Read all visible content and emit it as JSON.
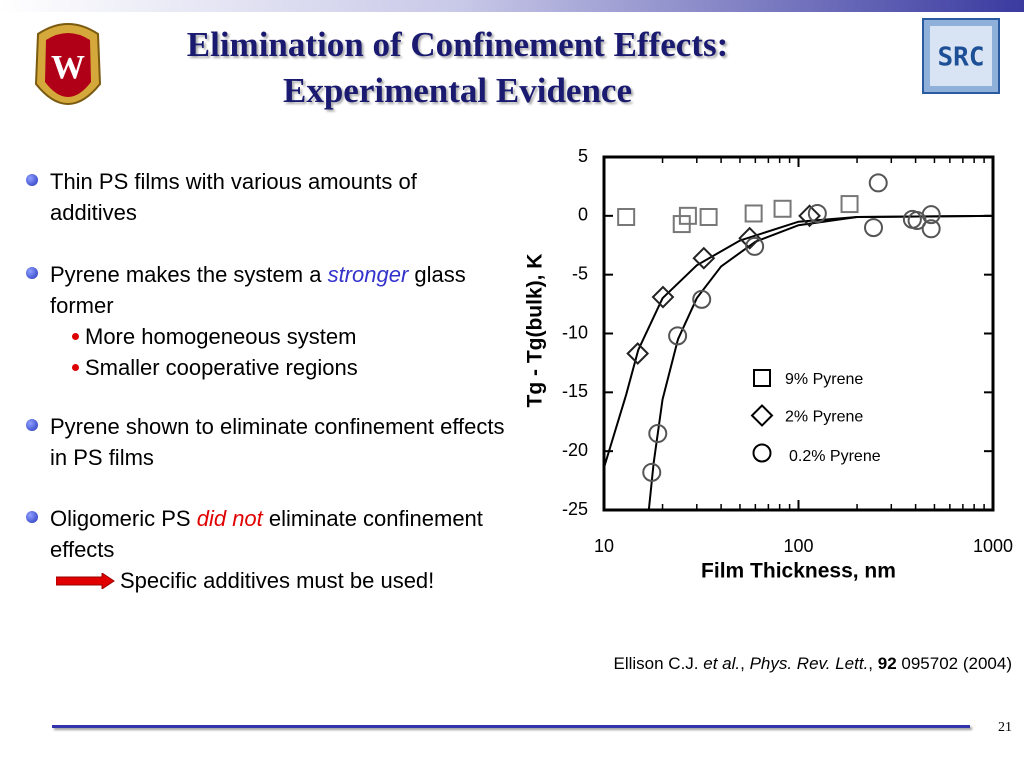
{
  "header": {
    "title": [
      "Elimination of Confinement Effects:",
      "Experimental Evidence"
    ]
  },
  "bullets": [
    {
      "runs": [
        {
          "text": "Thin PS films with various amounts of additives"
        }
      ]
    },
    {
      "runs": [
        {
          "text": "Pyrene makes the system a "
        },
        {
          "text": "stronger",
          "style": "italic-blue"
        },
        {
          "text": " glass former"
        }
      ],
      "sub": [
        "More homogeneous system",
        "Smaller cooperative regions"
      ]
    },
    {
      "runs": [
        {
          "text": "Pyrene shown to eliminate confinement effects in PS films"
        }
      ]
    },
    {
      "runs": [
        {
          "text": "Oligomeric PS "
        },
        {
          "text": "did not",
          "style": "italic-red"
        },
        {
          "text": " eliminate confinement effects"
        }
      ],
      "note": "Specific additives must be used!"
    }
  ],
  "citation": [
    {
      "text": "Ellison C.J. "
    },
    {
      "text": "et al.",
      "style": "italic"
    },
    {
      "text": ", "
    },
    {
      "text": "Phys. Rev. Lett.",
      "style": "italic"
    },
    {
      "text": ", "
    },
    {
      "text": "92",
      "style": "bold"
    },
    {
      "text": " 095702 (2004)"
    }
  ],
  "page_number": "21",
  "chart_data": {
    "type": "scatter",
    "x_label": "Film Thickness, nm",
    "y_label": "Tg - Tg(bulk), K",
    "xlim": [
      10,
      1000
    ],
    "ylim": [
      -25,
      5
    ],
    "x_scale": "log",
    "xticks": [
      10,
      100,
      1000
    ],
    "yticks": [
      -25,
      -20,
      -15,
      -10,
      -5,
      0,
      5
    ],
    "series": [
      {
        "name": "9% Pyrene",
        "marker": "square",
        "color": "#777777",
        "x": [
          13.0,
          27.0,
          25.1,
          34.5,
          58.8,
          82.8,
          183
        ],
        "values": [
          -0.1,
          0,
          -0.7,
          -0.1,
          0.2,
          0.6,
          1.0
        ]
      },
      {
        "name": "2% Pyrene",
        "marker": "diamond",
        "color": "#222222",
        "x": [
          14.9,
          20.1,
          32.6,
          56.1,
          114
        ],
        "values": [
          -11.7,
          -6.9,
          -3.6,
          -1.9,
          0.0
        ]
      },
      {
        "name": "0.2% Pyrene",
        "marker": "circle",
        "color": "#555555",
        "x": [
          17.6,
          18.9,
          23.9,
          31.8,
          59.5,
          125,
          257,
          243,
          385,
          407,
          481,
          481
        ],
        "values": [
          -21.8,
          -18.5,
          -10.2,
          -7.1,
          -2.6,
          0.2,
          2.8,
          -1.0,
          -0.3,
          -0.4,
          0.1,
          -1.1
        ]
      }
    ],
    "fits": [
      {
        "color": "#000000",
        "x": [
          10,
          13,
          15,
          20,
          30,
          50,
          100,
          200,
          1000
        ],
        "values": [
          -21.4,
          -15.2,
          -11.4,
          -7,
          -4.2,
          -2.1,
          -0.5,
          -0.1,
          0
        ]
      },
      {
        "color": "#000000",
        "x": [
          17,
          18,
          20,
          24,
          30,
          40,
          60,
          100,
          200,
          1000
        ],
        "values": [
          -25,
          -21,
          -15.6,
          -10.5,
          -7,
          -4.3,
          -2.2,
          -0.8,
          -0.1,
          0
        ]
      }
    ]
  }
}
